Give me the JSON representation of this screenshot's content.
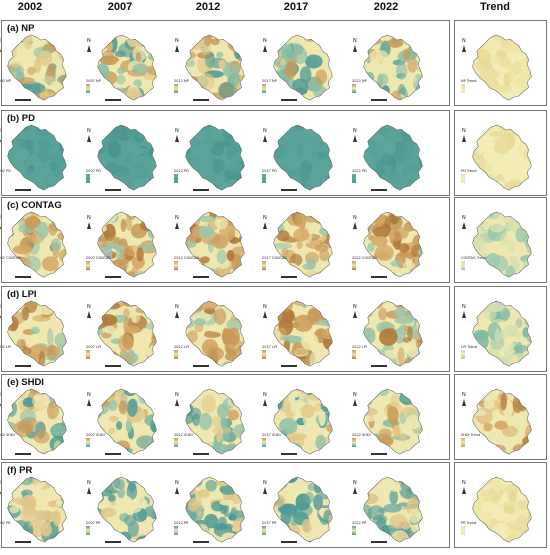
{
  "columns": [
    "2002",
    "2007",
    "2012",
    "2017",
    "2022",
    "Trend"
  ],
  "rows": [
    {
      "id": "np",
      "label": "(a) NP",
      "legend_titles": [
        "2002 NP",
        "2007 NP",
        "2012 NP",
        "2017 NP",
        "2022 NP",
        "NP Trend"
      ],
      "palette": "mixed",
      "trend_palette": "trend-yellow"
    },
    {
      "id": "pd",
      "label": "(b) PD",
      "legend_titles": [
        "2002 PD",
        "2007 PD",
        "2012 PD",
        "2017 PD",
        "2022 PD",
        "PD Trend"
      ],
      "palette": "teal",
      "trend_palette": "trend-yellow"
    },
    {
      "id": "contag",
      "label": "(c) CONTAG",
      "legend_titles": [
        "2002 CONTAG",
        "2007 CONTAG",
        "2012 CONTAG",
        "2017 CONTAG",
        "2022 CONTAG",
        "CONTAG Trend"
      ],
      "palette": "brown",
      "trend_palette": "trend-green"
    },
    {
      "id": "lpi",
      "label": "(d) LPI",
      "legend_titles": [
        "2002 LPI",
        "2007 LPI",
        "2012 LPI",
        "2017 LPI",
        "2022 LPI",
        "LPI Trend"
      ],
      "palette": "brown",
      "trend_palette": "trend-green"
    },
    {
      "id": "shdi",
      "label": "(e) SHDI",
      "legend_titles": [
        "2002 SHDI",
        "2007 SHDI",
        "2012 SHDI",
        "2017 SHDI",
        "2022 SHDI",
        "SHDI Trend"
      ],
      "palette": "mixed",
      "trend_palette": "trend-brown"
    },
    {
      "id": "pr",
      "label": "(f) PR",
      "legend_titles": [
        "2002 PR",
        "2007 PR",
        "2012 PR",
        "2017 PR",
        "2022 PR",
        "PR Trend"
      ],
      "palette": "mixed-teal",
      "trend_palette": "trend-yellow"
    }
  ],
  "legend_scale": {
    "high": "High",
    "low": "Low"
  },
  "north_label": "N",
  "colors": {
    "teal": "#4e9a94",
    "pale": "#eee8b0",
    "brown": "#b07a3c",
    "green_teal": "#6fb0a0",
    "yellow": "#f0e7a6"
  }
}
